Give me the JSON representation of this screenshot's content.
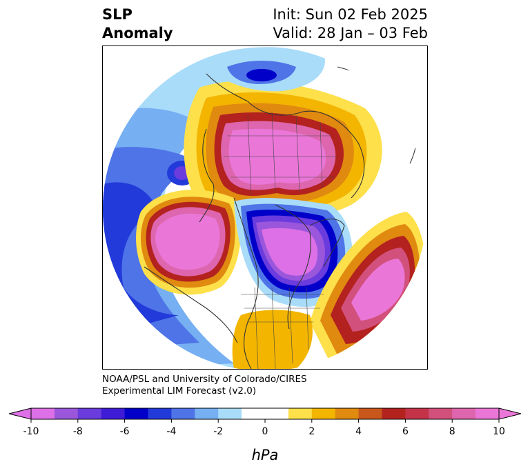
{
  "title": {
    "left_line1": "SLP",
    "left_line2": "Anomaly",
    "right_line1": "Init: Sun 02 Feb 2025",
    "right_line2": "Valid: 28 Jan – 03 Feb"
  },
  "credit": {
    "line1": "NOAA/PSL and University of Colorado/CIRES",
    "line2": "Experimental LIM Forecast (v2.0)"
  },
  "colorbar": {
    "unit": "hPa",
    "tick_labels": [
      "-10",
      "-8",
      "-6",
      "-4",
      "-2",
      "0",
      "2",
      "4",
      "6",
      "8",
      "10"
    ],
    "colors": [
      "#dd70e6",
      "#9a57dc",
      "#6a3bdd",
      "#3e1cd7",
      "#0000c9",
      "#223ad9",
      "#4e74e7",
      "#76aff2",
      "#a9dcf9",
      "#ffffff",
      "#ffffff",
      "#fde04a",
      "#f3b500",
      "#e08a10",
      "#c9571b",
      "#b3221f",
      "#c53348",
      "#d2507c",
      "#de66ae",
      "#ea77d8"
    ],
    "extend": "both",
    "min_color": "#dd70e6",
    "max_color": "#ea77d8"
  },
  "map": {
    "projection": "north-polar-stereographic",
    "field": "sea-level pressure anomaly",
    "features": [
      "high anomaly over Arctic / northern Eurasia",
      "low anomaly over northern Canada / Hudson Bay",
      "high anomaly over central North Atlantic",
      "high anomaly over Bering Sea / Alaska",
      "low anomaly over North Pacific",
      "positive anomaly over southeastern United States"
    ]
  }
}
